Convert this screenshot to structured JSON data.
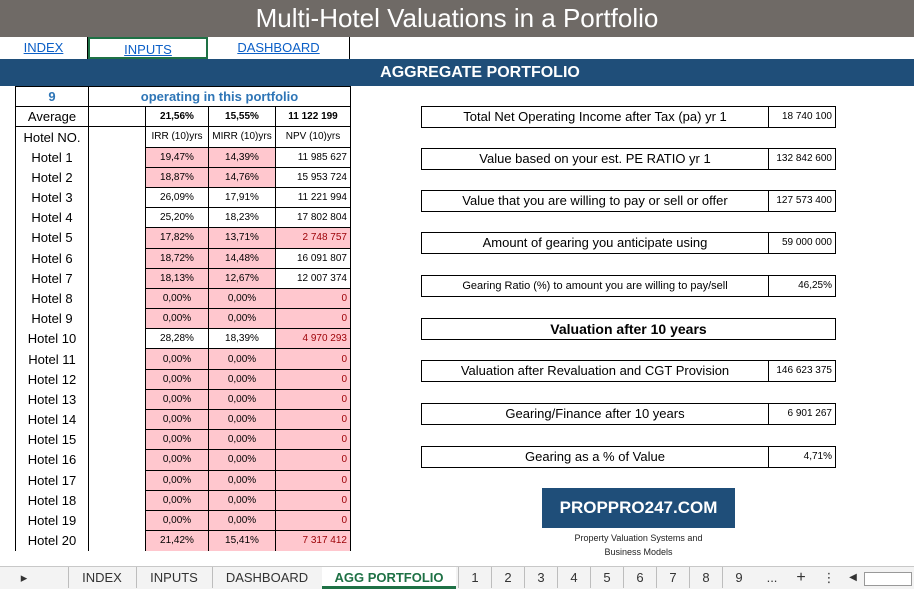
{
  "title": "Multi-Hotel Valuations in a Portfolio",
  "nav": {
    "index": "INDEX",
    "inputs": "INPUTS",
    "dashboard": "DASHBOARD"
  },
  "banner": "AGGREGATE PORTFOLIO",
  "portfolio": {
    "count": "9",
    "count_label": "operating in this portfolio",
    "average_label": "Average",
    "avg_irr": "21,56%",
    "avg_mirr": "15,55%",
    "total_npv": "11 122 199",
    "hotel_no_label": "Hotel NO.",
    "col_irr": "IRR (10)yrs",
    "col_mirr": "MIRR (10)yrs",
    "col_npv": "NPV (10)yrs"
  },
  "hotels": [
    {
      "name": "Hotel 1",
      "irr": "19,47%",
      "mirr": "14,39%",
      "npv": "11 985 627",
      "pink_rates": true,
      "pink_npv": false
    },
    {
      "name": "Hotel 2",
      "irr": "18,87%",
      "mirr": "14,76%",
      "npv": "15 953 724",
      "pink_rates": true,
      "pink_npv": false
    },
    {
      "name": "Hotel 3",
      "irr": "26,09%",
      "mirr": "17,91%",
      "npv": "11 221 994",
      "pink_rates": false,
      "pink_npv": false
    },
    {
      "name": "Hotel 4",
      "irr": "25,20%",
      "mirr": "18,23%",
      "npv": "17 802 804",
      "pink_rates": false,
      "pink_npv": false
    },
    {
      "name": "Hotel 5",
      "irr": "17,82%",
      "mirr": "13,71%",
      "npv": "2 748 757",
      "pink_rates": true,
      "pink_npv": true
    },
    {
      "name": "Hotel 6",
      "irr": "18,72%",
      "mirr": "14,48%",
      "npv": "16 091 807",
      "pink_rates": true,
      "pink_npv": false
    },
    {
      "name": "Hotel 7",
      "irr": "18,13%",
      "mirr": "12,67%",
      "npv": "12 007 374",
      "pink_rates": true,
      "pink_npv": false
    },
    {
      "name": "Hotel 8",
      "irr": "0,00%",
      "mirr": "0,00%",
      "npv": "0",
      "pink_rates": true,
      "pink_npv": true
    },
    {
      "name": "Hotel 9",
      "irr": "0,00%",
      "mirr": "0,00%",
      "npv": "0",
      "pink_rates": true,
      "pink_npv": true
    },
    {
      "name": "Hotel 10",
      "irr": "28,28%",
      "mirr": "18,39%",
      "npv": "4 970 293",
      "pink_rates": false,
      "pink_npv": true
    },
    {
      "name": "Hotel 11",
      "irr": "0,00%",
      "mirr": "0,00%",
      "npv": "0",
      "pink_rates": true,
      "pink_npv": true
    },
    {
      "name": "Hotel 12",
      "irr": "0,00%",
      "mirr": "0,00%",
      "npv": "0",
      "pink_rates": true,
      "pink_npv": true
    },
    {
      "name": "Hotel 13",
      "irr": "0,00%",
      "mirr": "0,00%",
      "npv": "0",
      "pink_rates": true,
      "pink_npv": true
    },
    {
      "name": "Hotel 14",
      "irr": "0,00%",
      "mirr": "0,00%",
      "npv": "0",
      "pink_rates": true,
      "pink_npv": true
    },
    {
      "name": "Hotel 15",
      "irr": "0,00%",
      "mirr": "0,00%",
      "npv": "0",
      "pink_rates": true,
      "pink_npv": true
    },
    {
      "name": "Hotel 16",
      "irr": "0,00%",
      "mirr": "0,00%",
      "npv": "0",
      "pink_rates": true,
      "pink_npv": true
    },
    {
      "name": "Hotel 17",
      "irr": "0,00%",
      "mirr": "0,00%",
      "npv": "0",
      "pink_rates": true,
      "pink_npv": true
    },
    {
      "name": "Hotel 18",
      "irr": "0,00%",
      "mirr": "0,00%",
      "npv": "0",
      "pink_rates": true,
      "pink_npv": true
    },
    {
      "name": "Hotel 19",
      "irr": "0,00%",
      "mirr": "0,00%",
      "npv": "0",
      "pink_rates": true,
      "pink_npv": true
    },
    {
      "name": "Hotel 20",
      "irr": "21,42%",
      "mirr": "15,41%",
      "npv": "7 317 412",
      "pink_rates": true,
      "pink_npv": true
    }
  ],
  "metrics": [
    {
      "label": "Total Net Operating Income after Tax (pa) yr 1",
      "value": "18 740 100"
    },
    {
      "label": "Value based on your est. PE RATIO yr 1",
      "value": "132 842 600"
    },
    {
      "label": "Value that you are willing to pay or sell or offer",
      "value": "127 573 400"
    },
    {
      "label": "Amount of gearing you anticipate using",
      "value": "59 000 000"
    },
    {
      "label": "Gearing Ratio (%) to amount you are willing to pay/sell",
      "value": "46,25%"
    },
    {
      "label": "Valuation after 10 years",
      "value": ""
    },
    {
      "label": "Valuation after Revaluation and CGT Provision",
      "value": "146 623 375"
    },
    {
      "label": "Gearing/Finance after 10 years",
      "value": "6 901 267"
    },
    {
      "label": "Gearing as a % of Value",
      "value": "4,71%"
    }
  ],
  "logo": {
    "name": "PROPPRO247.COM",
    "tagline_1": "Property Valuation Systems and",
    "tagline_2": "Business Models"
  },
  "sheet_tabs": {
    "prev_arrow": "▸",
    "index": "INDEX",
    "inputs": "INPUTS",
    "dashboard": "DASHBOARD",
    "active": "AGG PORTFOLIO",
    "numbers": [
      "1",
      "2",
      "3",
      "4",
      "5",
      "6",
      "7",
      "8",
      "9"
    ],
    "more": "...",
    "add": "+",
    "options": "⋮"
  },
  "colors": {
    "title_bg": "#6f6a66",
    "banner_bg": "#1f4e79",
    "pink": "#ffc7ce",
    "active_tab": "#1e7145",
    "link": "#0b5fc7"
  }
}
